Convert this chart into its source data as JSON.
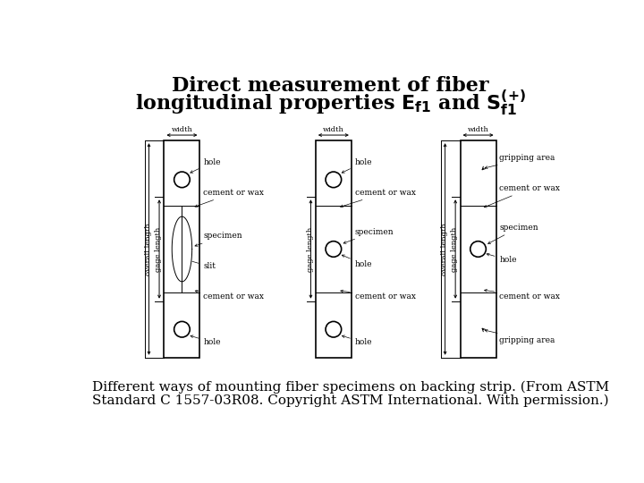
{
  "title_line1": "Direct measurement of fiber",
  "title_line2_math": "longitudinal properties $\\mathbf{E_{f1}}$ and $\\mathbf{S_{f1}^{(+)}}$",
  "caption_line1": "Different ways of mounting fiber specimens on backing strip. (From ASTM",
  "caption_line2": "Standard C 1557-03R08. Copyright ASTM International. With permission.)",
  "bg_color": "#ffffff",
  "text_color": "#000000",
  "lc": "#000000",
  "title_fontsize": 16,
  "caption_fontsize": 11
}
